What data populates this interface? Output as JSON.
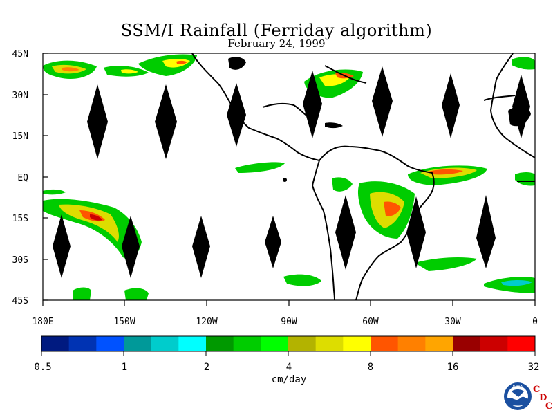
{
  "header": {
    "title": "SSM/I Rainfall (Ferriday algorithm)",
    "subtitle": "February 24, 1999"
  },
  "map": {
    "lat_labels": [
      "45N",
      "30N",
      "15N",
      "EQ",
      "15S",
      "30S",
      "45S"
    ],
    "lon_labels": [
      "180E",
      "150W",
      "120W",
      "90W",
      "60W",
      "30W",
      "0"
    ],
    "land_outline_color": "#000000",
    "swath_gap_color": "#000000"
  },
  "colorbar": {
    "unit_label": "cm/day",
    "tick_labels": [
      "0.5",
      "1",
      "2",
      "4",
      "8",
      "16",
      "32"
    ],
    "colors": [
      "#001a80",
      "#0033b3",
      "#0052ff",
      "#009999",
      "#00cccc",
      "#00ffff",
      "#009900",
      "#00cc00",
      "#00ff00",
      "#b3b300",
      "#dddd00",
      "#ffff00",
      "#ff5500",
      "#ff8000",
      "#ffa500",
      "#990000",
      "#cc0000",
      "#ff0000"
    ]
  },
  "logo": {
    "agency": "NOAA",
    "letters": [
      "C",
      "D",
      "C"
    ]
  }
}
